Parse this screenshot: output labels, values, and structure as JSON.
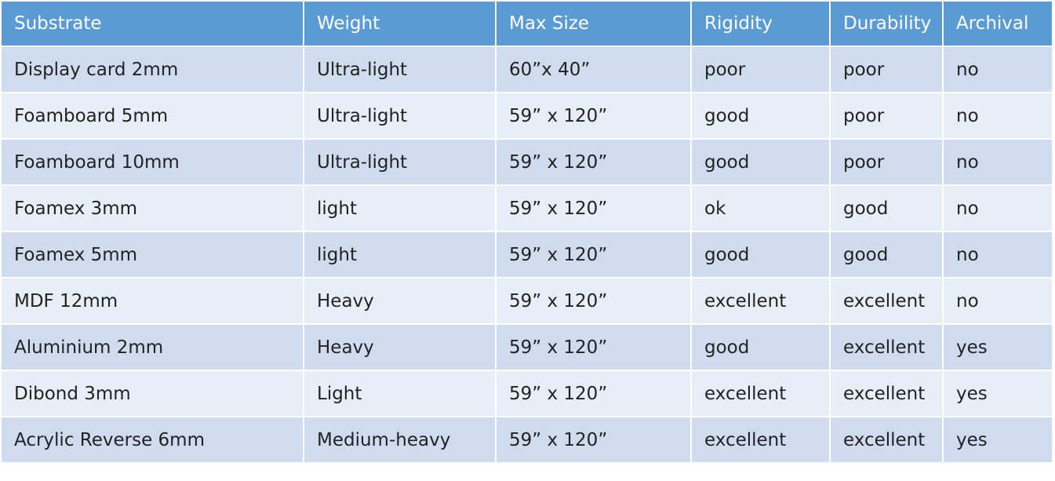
{
  "table": {
    "header": [
      "Substrate",
      "Weight",
      "Max Size",
      "Rigidity",
      "Durability",
      "Archival"
    ],
    "rows": [
      [
        "Display card 2mm",
        "Ultra-light",
        "60”x 40”",
        "poor",
        "poor",
        "no"
      ],
      [
        "Foamboard 5mm",
        "Ultra-light",
        "59” x 120”",
        "good",
        "poor",
        "no"
      ],
      [
        "Foamboard 10mm",
        "Ultra-light",
        "59” x 120”",
        "good",
        "poor",
        "no"
      ],
      [
        "Foamex 3mm",
        "light",
        "59” x 120”",
        "ok",
        "good",
        "no"
      ],
      [
        "Foamex 5mm",
        "light",
        "59” x 120”",
        "good",
        "good",
        "no"
      ],
      [
        "MDF 12mm",
        "Heavy",
        "59” x 120”",
        "excellent",
        "excellent",
        "no"
      ],
      [
        "Aluminium 2mm",
        "Heavy",
        "59” x 120”",
        "good",
        "excellent",
        "yes"
      ],
      [
        "Dibond 3mm",
        "Light",
        "59” x 120”",
        "excellent",
        "excellent",
        "yes"
      ],
      [
        "Acrylic Reverse 6mm",
        "Medium-heavy",
        "59” x 120”",
        "excellent",
        "excellent",
        "yes"
      ]
    ]
  }
}
